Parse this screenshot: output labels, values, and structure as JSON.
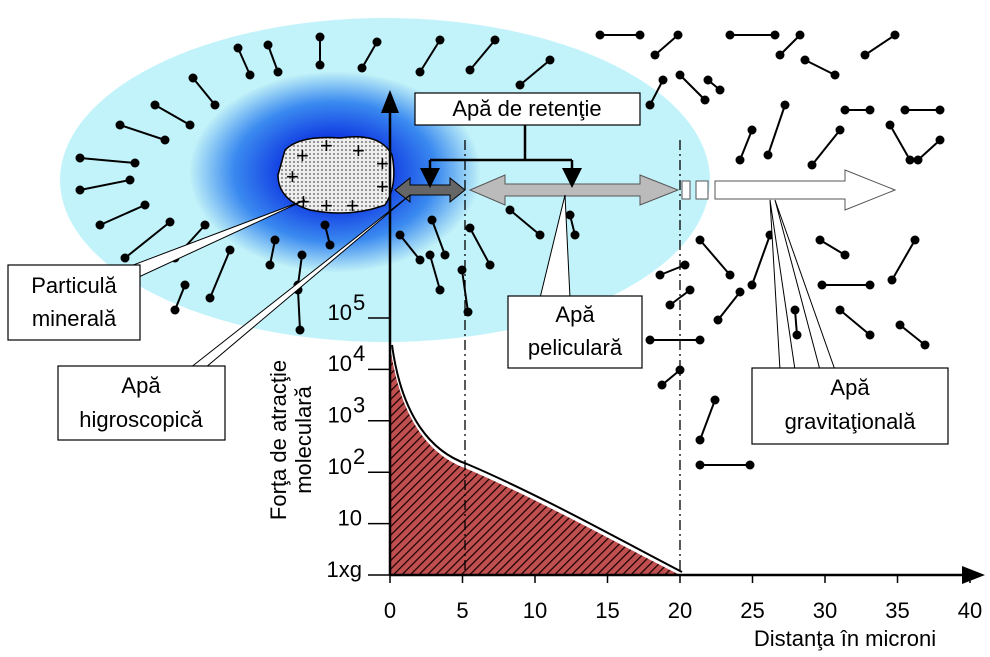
{
  "labels": {
    "retention": "Apă de retenţie",
    "mineral": [
      "Particulă",
      "minerală"
    ],
    "hygroscopic": [
      "Apă",
      "higroscopică"
    ],
    "pellicular": [
      "Apă",
      "peliculară"
    ],
    "gravitational": [
      "Apă",
      "gravitaţională"
    ]
  },
  "axes": {
    "y_title": [
      "Forţa de atracţie",
      "moleculară"
    ],
    "x_title": "Distanţa în microni",
    "x_ticks": [
      "0",
      "5",
      "10",
      "15",
      "20",
      "25",
      "30",
      "35",
      "40"
    ],
    "y_ticks": [
      {
        "base": "1xg",
        "exp": ""
      },
      {
        "base": "10",
        "exp": ""
      },
      {
        "base": "10",
        "exp": "2"
      },
      {
        "base": "10",
        "exp": "3"
      },
      {
        "base": "10",
        "exp": "4"
      },
      {
        "base": "10",
        "exp": "5"
      }
    ]
  }
}
